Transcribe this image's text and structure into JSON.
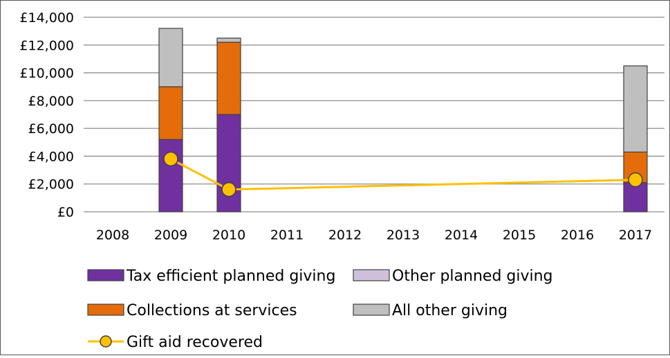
{
  "chart_data": {
    "type": "bar",
    "stacked": true,
    "title": "",
    "xlabel": "",
    "ylabel": "",
    "categories": [
      "2008",
      "2009",
      "2010",
      "2011",
      "2012",
      "2013",
      "2014",
      "2015",
      "2016",
      "2017"
    ],
    "ylim": [
      0,
      14000
    ],
    "y_ticks": [
      0,
      2000,
      4000,
      6000,
      8000,
      10000,
      12000,
      14000
    ],
    "y_tick_labels": [
      "£0",
      "£2,000",
      "£4,000",
      "£6,000",
      "£8,000",
      "£10,000",
      "£12,000",
      "£14,000"
    ],
    "grid": true,
    "legend_position": "bottom",
    "series": [
      {
        "name": "Tax efficient planned giving",
        "kind": "bar",
        "color": "#7030a0",
        "values": [
          null,
          5200,
          7000,
          null,
          null,
          null,
          null,
          null,
          null,
          2100
        ]
      },
      {
        "name": "Other planned giving",
        "kind": "bar",
        "color": "#ccc0da",
        "values": [
          null,
          0,
          0,
          null,
          null,
          null,
          null,
          null,
          null,
          0
        ]
      },
      {
        "name": "Collections at services",
        "kind": "bar",
        "color": "#e46c0a",
        "values": [
          null,
          3800,
          5200,
          null,
          null,
          null,
          null,
          null,
          null,
          2200
        ]
      },
      {
        "name": "All other giving",
        "kind": "bar",
        "color": "#bfbfbf",
        "values": [
          null,
          4200,
          300,
          null,
          null,
          null,
          null,
          null,
          null,
          6200
        ]
      },
      {
        "name": "Gift aid recovered",
        "kind": "line",
        "color": "#ffc000",
        "values": [
          null,
          3800,
          1600,
          null,
          null,
          null,
          null,
          null,
          null,
          2300
        ]
      }
    ]
  }
}
